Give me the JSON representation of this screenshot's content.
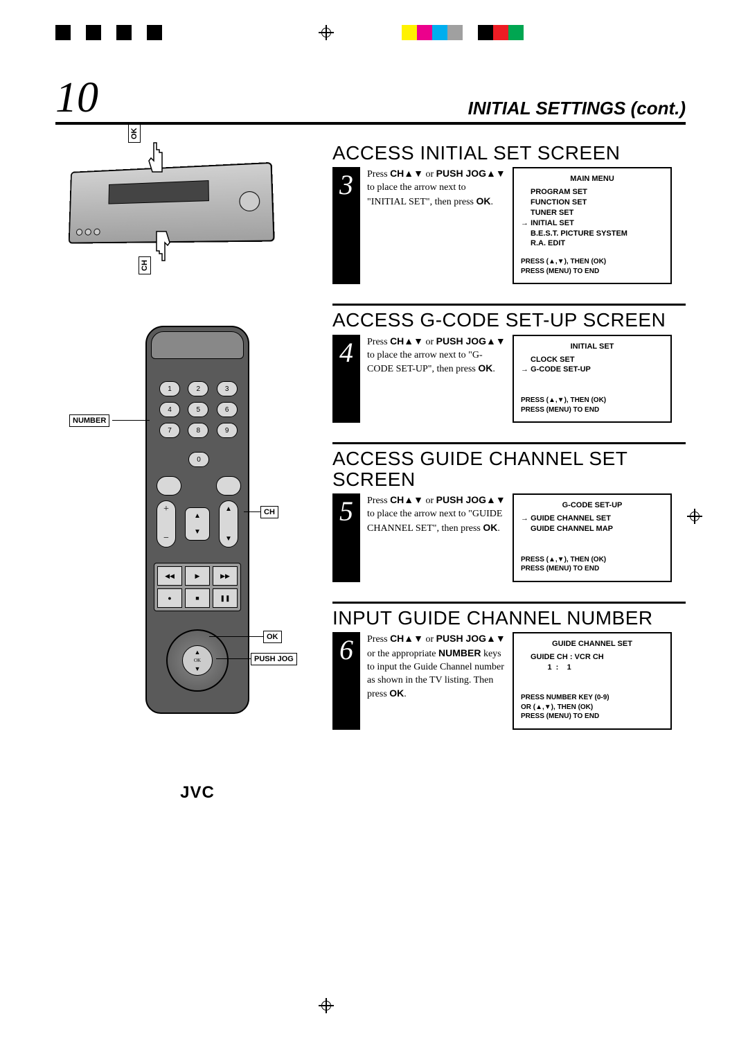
{
  "page_number": "10",
  "section_header": "INITIAL SETTINGS (cont.)",
  "colorbars": {
    "left": [
      "#000000",
      "#ffffff",
      "#000000",
      "#ffffff",
      "#000000",
      "#ffffff",
      "#000000",
      "#ffffff"
    ],
    "right": [
      "#fff200",
      "#ec008c",
      "#00aeef",
      "#a0a0a0",
      "#ffffff",
      "#000000",
      "#ed1c24",
      "#00a651"
    ]
  },
  "illustration_labels": {
    "ok": "OK",
    "ch": "CH",
    "number": "NUMBER",
    "push_jog": "PUSH JOG",
    "brand": "JVC"
  },
  "remote_numbers": [
    "1",
    "2",
    "3",
    "4",
    "5",
    "6",
    "7",
    "8",
    "9"
  ],
  "remote_zero": "0",
  "steps": [
    {
      "num": "3",
      "title": "ACCESS INITIAL SET SCREEN",
      "text_parts": [
        "Press ",
        "CH▲▼",
        " or ",
        "PUSH JOG▲▼",
        " to place the arrow next to \"INITIAL SET\", then press ",
        "OK",
        "."
      ],
      "screen": {
        "title": "MAIN MENU",
        "items": [
          {
            "label": "PROGRAM SET",
            "arrow": false
          },
          {
            "label": "FUNCTION SET",
            "arrow": false
          },
          {
            "label": "TUNER SET",
            "arrow": false
          },
          {
            "label": "INITIAL SET",
            "arrow": true
          },
          {
            "label": "B.E.S.T. PICTURE SYSTEM",
            "arrow": false
          },
          {
            "label": "R.A. EDIT",
            "arrow": false
          }
        ],
        "footer": [
          "PRESS (▲,▼), THEN (OK)",
          "PRESS (MENU) TO END"
        ],
        "footer_gap": false
      }
    },
    {
      "num": "4",
      "title": "ACCESS G-CODE SET-UP SCREEN",
      "text_parts": [
        "Press ",
        "CH▲▼",
        " or ",
        "PUSH JOG▲▼",
        " to place the arrow next to \"G-CODE SET-UP\", then press ",
        "OK",
        "."
      ],
      "screen": {
        "title": "INITIAL SET",
        "items": [
          {
            "label": "CLOCK SET",
            "arrow": false
          },
          {
            "label": "G-CODE SET-UP",
            "arrow": true
          }
        ],
        "footer": [
          "PRESS (▲,▼), THEN (OK)",
          "PRESS (MENU) TO END"
        ],
        "footer_gap": true
      }
    },
    {
      "num": "5",
      "title": "ACCESS GUIDE CHANNEL SET SCREEN",
      "text_parts": [
        "Press ",
        "CH▲▼",
        " or ",
        "PUSH JOG▲▼",
        " to place the arrow next to \"GUIDE CHANNEL SET\", then press ",
        "OK",
        "."
      ],
      "screen": {
        "title": "G-CODE SET-UP",
        "items": [
          {
            "label": "GUIDE CHANNEL SET",
            "arrow": true
          },
          {
            "label": "GUIDE CHANNEL MAP",
            "arrow": false
          }
        ],
        "footer": [
          "PRESS (▲,▼), THEN (OK)",
          "PRESS (MENU) TO END"
        ],
        "footer_gap": true
      }
    },
    {
      "num": "6",
      "title": "INPUT GUIDE CHANNEL NUMBER",
      "text_parts": [
        "Press ",
        "CH▲▼",
        " or ",
        "PUSH JOG▲▼",
        " or the appropriate ",
        "NUMBER",
        " keys to input the Guide Channel number as shown in the TV listing. Then press ",
        "OK",
        "."
      ],
      "screen": {
        "title": "GUIDE CHANNEL SET",
        "items": [
          {
            "label": "GUIDE CH : VCR CH",
            "arrow": false
          },
          {
            "label": "        1  :    1",
            "arrow": false
          }
        ],
        "footer": [
          "PRESS NUMBER KEY (0-9)",
          "OR (▲,▼), THEN (OK)",
          "PRESS (MENU) TO END"
        ],
        "footer_gap": true
      }
    }
  ]
}
